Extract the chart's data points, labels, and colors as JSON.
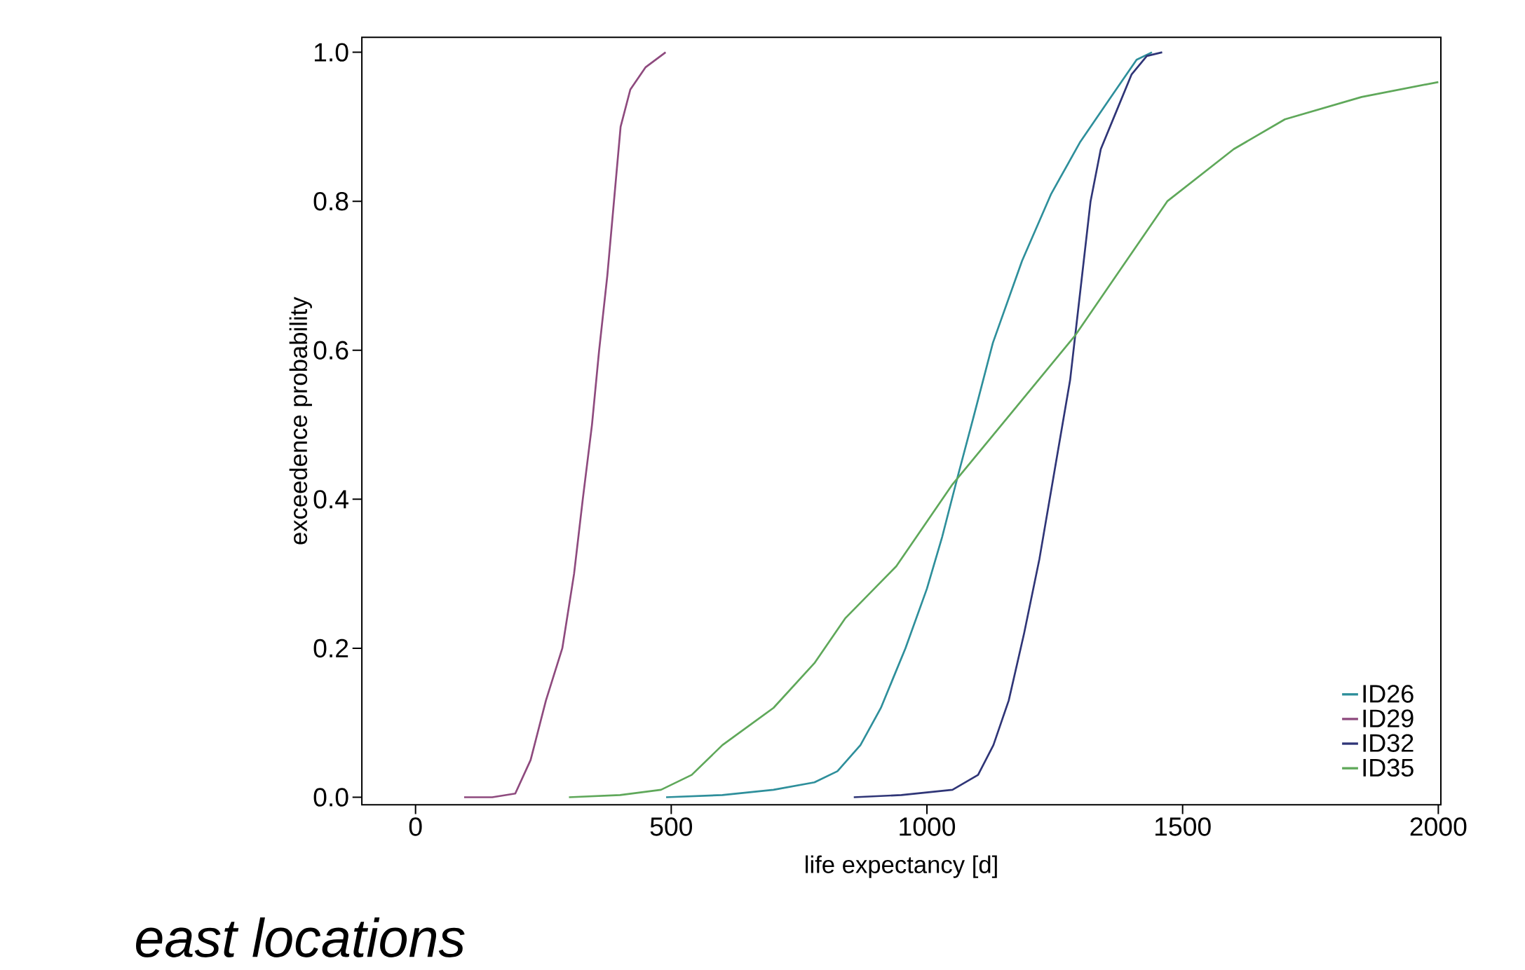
{
  "chart_data": {
    "type": "line",
    "xlabel": "life expectancy [d]",
    "ylabel": "exceedence probability",
    "annotations": [
      "*east locations*"
    ],
    "xlim": [
      -105,
      2005
    ],
    "ylim": [
      -0.01,
      1.02
    ],
    "xticks": [
      0,
      500,
      1000,
      1500,
      2000
    ],
    "yticks": [
      {
        "value": 0,
        "label": "0.0"
      },
      0.2,
      0.4,
      0.6,
      0.8,
      {
        "value": 1,
        "label": "1.0"
      }
    ],
    "legend": "bottom right",
    "grid": false,
    "marker": "none",
    "line_style": "solid",
    "series": [
      {
        "name": "ID26",
        "color": "#2e8f9b",
        "x": [
          490,
          600,
          700,
          780,
          825,
          870,
          910,
          958,
          1000,
          1030,
          1060,
          1091,
          1129,
          1186,
          1243,
          1300,
          1360,
          1410,
          1440
        ],
        "values": [
          0,
          0.003,
          0.01,
          0.02,
          0.035,
          0.07,
          0.12,
          0.2,
          0.28,
          0.35,
          0.43,
          0.51,
          0.61,
          0.72,
          0.81,
          0.88,
          0.94,
          0.99,
          1.0
        ]
      },
      {
        "name": "ID29",
        "color": "#8e4a7e",
        "x": [
          95,
          150,
          195,
          225,
          255,
          287,
          310,
          327,
          345,
          359,
          375,
          388,
          401,
          420,
          450,
          489
        ],
        "values": [
          0,
          0,
          0.005,
          0.05,
          0.13,
          0.2,
          0.3,
          0.4,
          0.5,
          0.6,
          0.7,
          0.8,
          0.9,
          0.95,
          0.98,
          1.0
        ]
      },
      {
        "name": "ID32",
        "color": "#2f3577",
        "x": [
          857,
          950,
          1050,
          1100,
          1130,
          1160,
          1190,
          1220,
          1250,
          1280,
          1300,
          1320,
          1340,
          1370,
          1400,
          1430,
          1460
        ],
        "values": [
          0,
          0.003,
          0.01,
          0.03,
          0.07,
          0.13,
          0.22,
          0.32,
          0.44,
          0.56,
          0.68,
          0.8,
          0.87,
          0.92,
          0.97,
          0.995,
          1.0
        ]
      },
      {
        "name": "ID35",
        "color": "#5fa85a",
        "x": [
          300,
          400,
          480,
          540,
          600,
          700,
          780,
          840,
          940,
          1050,
          1170,
          1290,
          1380,
          1470,
          1600,
          1700,
          1850,
          2000
        ],
        "values": [
          0,
          0.003,
          0.01,
          0.03,
          0.07,
          0.12,
          0.18,
          0.24,
          0.31,
          0.42,
          0.52,
          0.62,
          0.71,
          0.8,
          0.87,
          0.91,
          0.94,
          0.96
        ]
      }
    ]
  }
}
